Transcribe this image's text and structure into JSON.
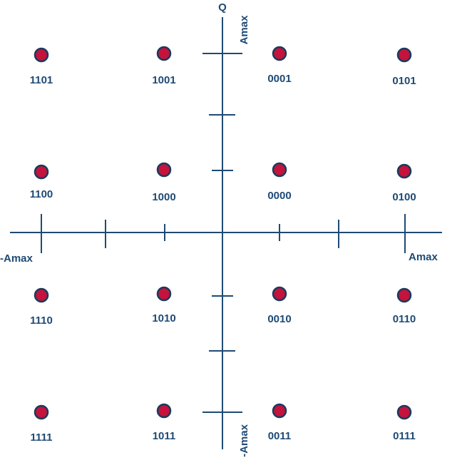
{
  "diagram": {
    "q_axis_label": "Q",
    "amax_label": "Amax",
    "neg_amax_label": "-Amax",
    "colors": {
      "axis": "#1f4a74",
      "point_fill": "#c4133c",
      "point_stroke": "#173b5e",
      "text": "#1f4a74"
    },
    "points": [
      {
        "label": "1101"
      },
      {
        "label": "1001"
      },
      {
        "label": "0001"
      },
      {
        "label": "0101"
      },
      {
        "label": "1100"
      },
      {
        "label": "1000"
      },
      {
        "label": "0000"
      },
      {
        "label": "0100"
      },
      {
        "label": "1110"
      },
      {
        "label": "1010"
      },
      {
        "label": "0010"
      },
      {
        "label": "0110"
      },
      {
        "label": "1111"
      },
      {
        "label": "1011"
      },
      {
        "label": "0011"
      },
      {
        "label": "0111"
      }
    ]
  }
}
